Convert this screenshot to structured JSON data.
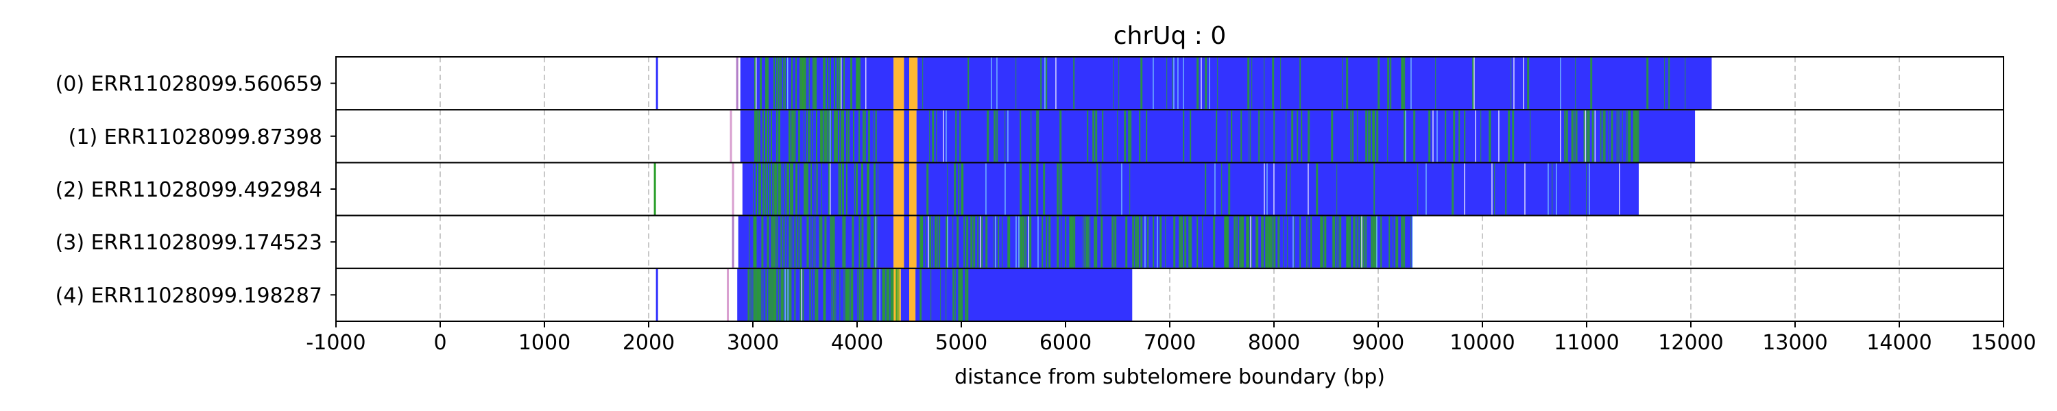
{
  "chart_data": {
    "type": "heatmap",
    "title": "chrUq : 0",
    "xlabel": "distance from subtelomere boundary (bp)",
    "ylabel": "",
    "xlim": [
      -1000,
      15000
    ],
    "xticks": [
      -1000,
      0,
      1000,
      2000,
      3000,
      4000,
      5000,
      6000,
      7000,
      8000,
      9000,
      10000,
      11000,
      12000,
      13000,
      14000,
      15000
    ],
    "grid": "vertical dashed",
    "colors": {
      "blue": "#3333ff",
      "green": "#2ca02c",
      "orange": "#ffb833",
      "grid": "#c8c8c8",
      "border": "#000000"
    },
    "reads": [
      {
        "label": "(0) ERR11028099.560659",
        "segments": [
          {
            "start": 2070,
            "end": 2090,
            "color": "#3333ff"
          },
          {
            "start": 2840,
            "end": 2860,
            "color": "#b07cc6"
          },
          {
            "start": 2880,
            "end": 4350,
            "color": "#3333ff"
          },
          {
            "start": 4350,
            "end": 4450,
            "color": "#ffb833"
          },
          {
            "start": 4450,
            "end": 4500,
            "color": "#3333ff"
          },
          {
            "start": 4500,
            "end": 4580,
            "color": "#ffb833"
          },
          {
            "start": 4580,
            "end": 12200,
            "color": "#3333ff"
          }
        ]
      },
      {
        "label": "(1) ERR11028099.87398",
        "segments": [
          {
            "start": 2780,
            "end": 2800,
            "color": "#d9a0d0"
          },
          {
            "start": 2880,
            "end": 4350,
            "color": "#3333ff"
          },
          {
            "start": 4350,
            "end": 4450,
            "color": "#ffb833"
          },
          {
            "start": 4450,
            "end": 4500,
            "color": "#3333ff"
          },
          {
            "start": 4500,
            "end": 4570,
            "color": "#ffb833"
          },
          {
            "start": 4570,
            "end": 12040,
            "color": "#3333ff"
          }
        ]
      },
      {
        "label": "(2) ERR11028099.492984",
        "segments": [
          {
            "start": 2050,
            "end": 2070,
            "color": "#2ca02c"
          },
          {
            "start": 2800,
            "end": 2820,
            "color": "#d9a0d0"
          },
          {
            "start": 2900,
            "end": 4350,
            "color": "#3333ff"
          },
          {
            "start": 4350,
            "end": 4450,
            "color": "#ffb833"
          },
          {
            "start": 4450,
            "end": 4500,
            "color": "#3333ff"
          },
          {
            "start": 4500,
            "end": 4570,
            "color": "#ffb833"
          },
          {
            "start": 4570,
            "end": 11500,
            "color": "#3333ff"
          }
        ]
      },
      {
        "label": "(3) ERR11028099.174523",
        "segments": [
          {
            "start": 2800,
            "end": 2820,
            "color": "#b07cc6"
          },
          {
            "start": 2860,
            "end": 4350,
            "color": "#3333ff"
          },
          {
            "start": 4350,
            "end": 4450,
            "color": "#ffb833"
          },
          {
            "start": 4450,
            "end": 4500,
            "color": "#3333ff"
          },
          {
            "start": 4500,
            "end": 4570,
            "color": "#ffb833"
          },
          {
            "start": 4570,
            "end": 9330,
            "color": "#3333ff"
          }
        ]
      },
      {
        "label": "(4) ERR11028099.198287",
        "segments": [
          {
            "start": 2070,
            "end": 2090,
            "color": "#3333ff"
          },
          {
            "start": 2750,
            "end": 2770,
            "color": "#d9a0d0"
          },
          {
            "start": 2850,
            "end": 4350,
            "color": "#3333ff"
          },
          {
            "start": 4350,
            "end": 4420,
            "color": "#ffb833"
          },
          {
            "start": 4420,
            "end": 4500,
            "color": "#3333ff"
          },
          {
            "start": 4500,
            "end": 4560,
            "color": "#ffb833"
          },
          {
            "start": 4560,
            "end": 6640,
            "color": "#3333ff"
          }
        ]
      }
    ],
    "green_regions": [
      [
        {
          "start": 3000,
          "end": 4100,
          "density": 0.45
        },
        {
          "start": 4600,
          "end": 12200,
          "density": 0.07
        }
      ],
      [
        {
          "start": 3000,
          "end": 4200,
          "density": 0.45
        },
        {
          "start": 4600,
          "end": 10800,
          "density": 0.12
        },
        {
          "start": 10800,
          "end": 11500,
          "density": 0.55
        }
      ],
      [
        {
          "start": 3000,
          "end": 4200,
          "density": 0.42
        },
        {
          "start": 4600,
          "end": 11500,
          "density": 0.05
        }
      ],
      [
        {
          "start": 2950,
          "end": 4200,
          "density": 0.45
        },
        {
          "start": 4600,
          "end": 7600,
          "density": 0.35
        },
        {
          "start": 7600,
          "end": 9330,
          "density": 0.55
        }
      ],
      [
        {
          "start": 2950,
          "end": 4400,
          "density": 0.5
        },
        {
          "start": 4600,
          "end": 5100,
          "density": 0.35
        }
      ]
    ]
  }
}
